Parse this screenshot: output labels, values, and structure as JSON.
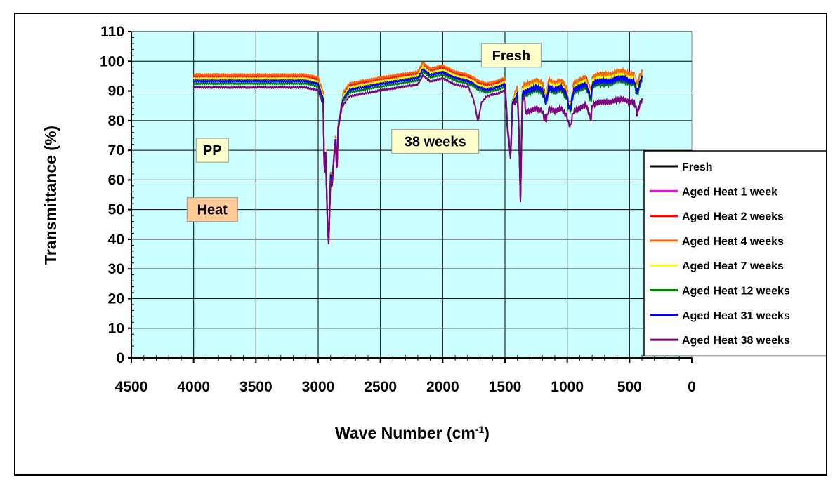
{
  "chart_data": {
    "type": "line",
    "xlabel": "Wave Number (cm",
    "xlabel_sup": "-1",
    "xlabel_tail": ")",
    "ylabel": "Transmittance (%)",
    "xlim": [
      4500,
      0
    ],
    "ylim": [
      0,
      110
    ],
    "x_ticks": [
      "4500",
      "4000",
      "3500",
      "3000",
      "2500",
      "2000",
      "1500",
      "1000",
      "500",
      "0"
    ],
    "y_ticks": [
      "0",
      "10",
      "20",
      "30",
      "40",
      "50",
      "60",
      "70",
      "80",
      "90",
      "100",
      "110"
    ],
    "grid": true,
    "legend_position": "right",
    "annotations": [
      {
        "text": "Fresh",
        "bg": "#ffffcc",
        "x": 1450,
        "y": 102
      },
      {
        "text": "38 weeks",
        "bg": "#ffffcc",
        "x": 2060,
        "y": 73
      },
      {
        "text": "PP",
        "bg": "#ffffcc",
        "x": 3850,
        "y": 70
      },
      {
        "text": "Heat",
        "bg": "#ffcc99",
        "x": 3850,
        "y": 50
      }
    ],
    "series": [
      {
        "name": "Fresh",
        "color": "#000000",
        "offset": 0.0
      },
      {
        "name": "Aged Heat 1 week",
        "color": "#ff00ff",
        "offset": 0.5
      },
      {
        "name": "Aged Heat 2 weeks",
        "color": "#ff0000",
        "offset": 1.0
      },
      {
        "name": "Aged Heat 4 weeks",
        "color": "#ff6600",
        "offset": 1.5
      },
      {
        "name": "Aged Heat 7 weeks",
        "color": "#ffff00",
        "offset": 0.2
      },
      {
        "name": "Aged Heat 12 weeks",
        "color": "#008000",
        "offset": -1.5
      },
      {
        "name": "Aged Heat 31 weeks",
        "color": "#0000ff",
        "offset": -0.7
      },
      {
        "name": "Aged Heat 38 weeks",
        "color": "#800080",
        "offset": -2.8
      }
    ],
    "base_profile": {
      "x": [
        4000,
        3600,
        3100,
        3000,
        2960,
        2950,
        2940,
        2925,
        2915,
        2900,
        2890,
        2870,
        2860,
        2850,
        2840,
        2800,
        2750,
        2500,
        2350,
        2200,
        2160,
        2100,
        2000,
        1900,
        1800,
        1750,
        1720,
        1650,
        1550,
        1500,
        1480,
        1465,
        1455,
        1440,
        1400,
        1390,
        1376,
        1360,
        1300,
        1250,
        1200,
        1170,
        1150,
        1100,
        1050,
        1000,
        998,
        973,
        950,
        900,
        850,
        808,
        800,
        750,
        700,
        650,
        600,
        550,
        500,
        460,
        440,
        420,
        400
      ],
      "y": [
        94,
        94,
        94,
        93,
        88,
        62,
        70,
        45,
        39,
        62,
        58,
        70,
        74,
        63,
        78,
        88,
        91,
        93,
        94,
        95,
        98,
        96,
        97,
        95,
        94,
        93,
        92,
        91,
        92,
        93,
        78,
        72,
        68,
        86,
        90,
        78,
        54,
        90,
        91,
        92,
        91,
        86,
        92,
        91,
        92,
        89,
        86,
        84,
        91,
        92,
        93,
        88,
        93,
        94,
        94,
        94,
        95,
        95,
        94,
        94,
        90,
        93,
        95
      ]
    },
    "special_38_weeks": {
      "x": [
        1800,
        1760,
        1740,
        1720,
        1710,
        1690,
        1650,
        1600
      ],
      "y": [
        92,
        88,
        85,
        80,
        81,
        86,
        88,
        89
      ],
      "tail_drop": 5
    }
  }
}
